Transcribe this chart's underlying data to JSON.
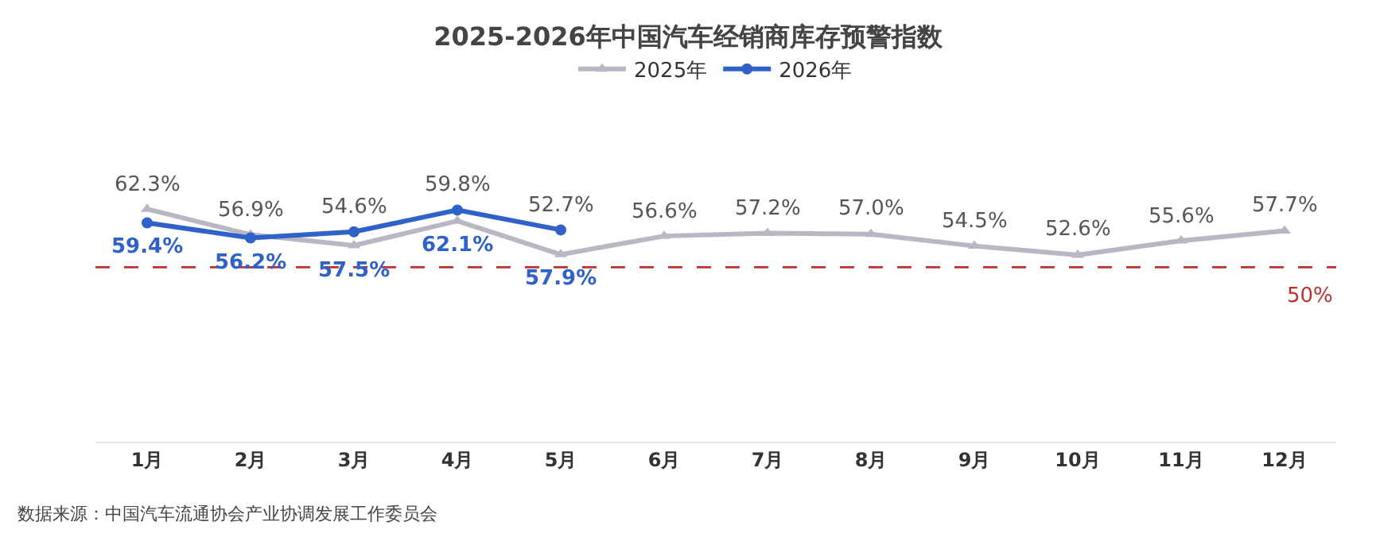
{
  "chart_data": {
    "type": "line",
    "title": "2025-2026年中国汽车经销商库存预警指数",
    "categories": [
      "1月",
      "2月",
      "3月",
      "4月",
      "5月",
      "6月",
      "7月",
      "8月",
      "9月",
      "10月",
      "11月",
      "12月"
    ],
    "series": [
      {
        "name": "2025年",
        "color": "#b8b8c4",
        "marker": "triangle",
        "values": [
          62.3,
          56.9,
          54.6,
          59.8,
          52.7,
          56.6,
          57.2,
          57.0,
          54.5,
          52.6,
          55.6,
          57.7
        ],
        "value_labels": [
          "62.3%",
          "56.9%",
          "54.6%",
          "59.8%",
          "52.7%",
          "56.6%",
          "57.2%",
          "57.0%",
          "54.5%",
          "52.6%",
          "55.6%",
          "57.7%"
        ]
      },
      {
        "name": "2026年",
        "color": "#2f62c9",
        "marker": "circle",
        "values": [
          59.4,
          56.2,
          57.5,
          62.1,
          57.9,
          null,
          null,
          null,
          null,
          null,
          null,
          null
        ],
        "value_labels": [
          "59.4%",
          "56.2%",
          "57.5%",
          "62.1%",
          "57.9%",
          null,
          null,
          null,
          null,
          null,
          null,
          null
        ]
      }
    ],
    "tick_labels": "x",
    "grid": false,
    "legend": "top",
    "ref_lines": [
      {
        "axis": "y",
        "value": 50,
        "label": "50%",
        "color": "#c0302e",
        "line_style": "dashed"
      }
    ],
    "annotations": [
      "数据来源：中国汽车流通协会产业协调发展工作委员会"
    ]
  }
}
